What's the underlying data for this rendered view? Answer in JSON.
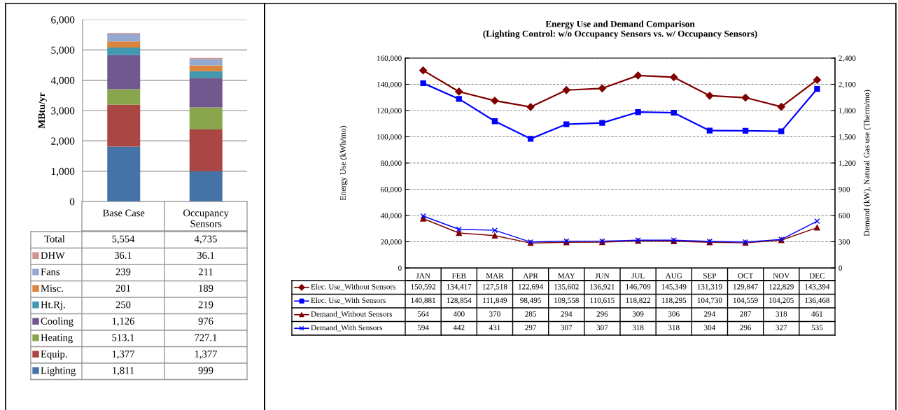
{
  "chart_data": [
    {
      "type": "bar",
      "stacked": true,
      "ylabel": "MBtu/yr",
      "categories": [
        "Base Case",
        "Occupancy\nSensors"
      ],
      "ylim": [
        0,
        6000
      ],
      "yticks": [
        0,
        {
          "value": 1000,
          "label": "1,000"
        },
        {
          "value": 2000,
          "label": "2,000"
        },
        {
          "value": 3000,
          "label": "3,000"
        },
        {
          "value": 4000,
          "label": "4,000"
        },
        {
          "value": 5000,
          "label": "5,000"
        },
        {
          "value": 6000,
          "label": "6,000"
        }
      ],
      "grid": "y",
      "legend": "bottom",
      "annotations": [
        "Total",
        "5,554",
        "4,735"
      ],
      "series": [
        {
          "name": "Lighting",
          "color": "#4572a7",
          "values": [
            1811,
            999
          ],
          "value_labels": [
            "1,811",
            "999"
          ]
        },
        {
          "name": "Equip.",
          "color": "#aa4643",
          "values": [
            1377,
            1377
          ],
          "value_labels": [
            "1,377",
            "1,377"
          ]
        },
        {
          "name": "Heating",
          "color": "#89a54e",
          "values": [
            513.1,
            727.1
          ],
          "value_labels": [
            "513.1",
            "727.1"
          ]
        },
        {
          "name": "Cooling",
          "color": "#71588f",
          "values": [
            1126,
            976
          ],
          "value_labels": [
            "1,126",
            "976"
          ]
        },
        {
          "name": "Ht.Rj.",
          "color": "#4198af",
          "values": [
            250,
            219
          ],
          "value_labels": [
            "250",
            "219"
          ]
        },
        {
          "name": "Misc.",
          "color": "#db843d",
          "values": [
            201,
            189
          ],
          "value_labels": [
            "201",
            "189"
          ]
        },
        {
          "name": "Fans",
          "color": "#93a9cf",
          "values": [
            239,
            211
          ],
          "value_labels": [
            "239",
            "211"
          ]
        },
        {
          "name": "DHW",
          "color": "#d19392",
          "values": [
            36.1,
            36.1
          ],
          "value_labels": [
            "36.1",
            "36.1"
          ]
        }
      ]
    },
    {
      "type": "line",
      "title": "Energy Use and Demand Comparison\n(Lighting Control: w/o Occupancy Sensors vs. w/ Occupancy Sensors)",
      "ylabel": "Energy Use (kWh/mo)",
      "y2label": "Demand (kW), Natural Gas use (Therm/mo)",
      "categories": [
        "JAN",
        "FEB",
        "MAR",
        "APR",
        "MAY",
        "JUN",
        "JUL",
        "AUG",
        "SEP",
        "OCT",
        "NOV",
        "DEC"
      ],
      "ylim": [
        0,
        160000
      ],
      "yticks": [
        0,
        {
          "value": 20000,
          "label": "20,000"
        },
        {
          "value": 40000,
          "label": "40,000"
        },
        {
          "value": 60000,
          "label": "60,000"
        },
        {
          "value": 80000,
          "label": "80,000"
        },
        {
          "value": 100000,
          "label": "100,000"
        },
        {
          "value": 120000,
          "label": "120,000"
        },
        {
          "value": 140000,
          "label": "140,000"
        },
        {
          "value": 160000,
          "label": "160,000"
        }
      ],
      "y2lim": [
        0,
        2400
      ],
      "y2ticks": [
        0,
        300,
        600,
        900,
        {
          "value": 1200,
          "label": "1,200"
        },
        {
          "value": 1500,
          "label": "1,500"
        },
        {
          "value": 1800,
          "label": "1,800"
        },
        {
          "value": 2100,
          "label": "2,100"
        },
        {
          "value": 2400,
          "label": "2,400"
        }
      ],
      "grid": "y",
      "legend": "bottom",
      "series": [
        {
          "name": "Elec. Use_Without Sensors",
          "color": "#800000",
          "marker": "diamond",
          "values": [
            150592,
            134417,
            127518,
            122694,
            135602,
            136921,
            146709,
            145349,
            131319,
            129847,
            122829,
            143394
          ],
          "value_labels": [
            "150,592",
            "134,417",
            "127,518",
            "122,694",
            "135,602",
            "136,921",
            "146,709",
            "145,349",
            "131,319",
            "129,847",
            "122,829",
            "143,394"
          ]
        },
        {
          "name": "Elec. Use_With Sensors",
          "color": "#0000ff",
          "marker": "square",
          "values": [
            140881,
            128854,
            111849,
            98495,
            109558,
            110615,
            118822,
            118295,
            104730,
            104559,
            104205,
            136468
          ],
          "value_labels": [
            "140,881",
            "128,854",
            "111,849",
            "98,495",
            "109,558",
            "110,615",
            "118,822",
            "118,295",
            "104,730",
            "104,559",
            "104,205",
            "136,468"
          ]
        },
        {
          "name": "Demand_Without Sensors",
          "color": "#800000",
          "marker": "triangle",
          "axis": "y2",
          "values": [
            564,
            400,
            370,
            285,
            294,
            296,
            309,
            306,
            294,
            287,
            318,
            461
          ],
          "value_labels": [
            "564",
            "400",
            "370",
            "285",
            "294",
            "296",
            "309",
            "306",
            "294",
            "287",
            "318",
            "461"
          ]
        },
        {
          "name": "Demand_With Sensors",
          "color": "#0000ff",
          "marker": "cross",
          "axis": "y2",
          "values": [
            594,
            442,
            431,
            297,
            307,
            307,
            318,
            318,
            304,
            296,
            327,
            535
          ],
          "value_labels": [
            "594",
            "442",
            "431",
            "297",
            "307",
            "307",
            "318",
            "318",
            "304",
            "296",
            "327",
            "535"
          ]
        }
      ]
    }
  ]
}
